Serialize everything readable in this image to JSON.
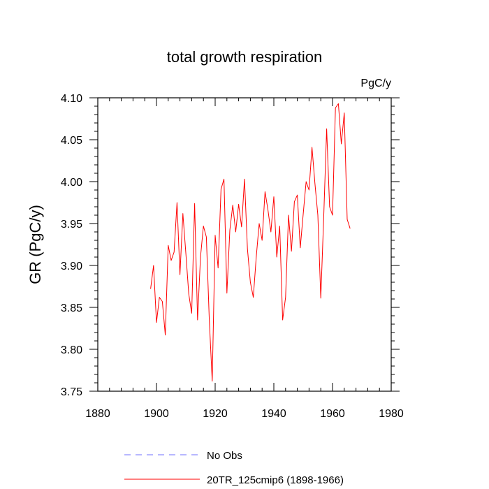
{
  "chart_data": {
    "type": "line",
    "title": "total growth respiration",
    "units_label": "PgC/y",
    "xlabel": "",
    "ylabel": "GR  (PgC/y)",
    "xlim": [
      1880,
      1980
    ],
    "ylim": [
      3.75,
      4.1
    ],
    "x_ticks": [
      1880,
      1900,
      1920,
      1940,
      1960,
      1980
    ],
    "x_tick_labels": [
      "1880",
      "1900",
      "1920",
      "1940",
      "1960",
      "1980"
    ],
    "y_ticks": [
      3.75,
      3.8,
      3.85,
      3.9,
      3.95,
      4.0,
      4.05,
      4.1
    ],
    "y_tick_labels": [
      "3.75",
      "3.80",
      "3.85",
      "3.90",
      "3.95",
      "4.00",
      "4.05",
      "4.10"
    ],
    "series": [
      {
        "name": "20TR_125cmip6 (1898-1966)",
        "color": "#ff0000",
        "style": "solid",
        "x": [
          1898,
          1899,
          1900,
          1901,
          1902,
          1903,
          1904,
          1905,
          1906,
          1907,
          1908,
          1909,
          1910,
          1911,
          1912,
          1913,
          1914,
          1915,
          1916,
          1917,
          1918,
          1919,
          1920,
          1921,
          1922,
          1923,
          1924,
          1925,
          1926,
          1927,
          1928,
          1929,
          1930,
          1931,
          1932,
          1933,
          1934,
          1935,
          1936,
          1937,
          1938,
          1939,
          1940,
          1941,
          1942,
          1943,
          1944,
          1945,
          1946,
          1947,
          1948,
          1949,
          1950,
          1951,
          1952,
          1953,
          1954,
          1955,
          1956,
          1957,
          1958,
          1959,
          1960,
          1961,
          1962,
          1963,
          1964,
          1965,
          1966
        ],
        "values": [
          3.872,
          3.9,
          3.832,
          3.862,
          3.857,
          3.817,
          3.924,
          3.906,
          3.916,
          3.975,
          3.889,
          3.962,
          3.915,
          3.866,
          3.843,
          3.974,
          3.835,
          3.91,
          3.947,
          3.934,
          3.835,
          3.762,
          3.936,
          3.897,
          3.991,
          4.003,
          3.867,
          3.942,
          3.972,
          3.94,
          3.973,
          3.946,
          4.003,
          3.92,
          3.88,
          3.862,
          3.91,
          3.95,
          3.93,
          3.988,
          3.966,
          3.94,
          3.982,
          3.91,
          3.947,
          3.835,
          3.862,
          3.96,
          3.917,
          3.976,
          3.984,
          3.921,
          3.961,
          4.0,
          3.99,
          4.041,
          3.998,
          3.96,
          3.861,
          3.958,
          4.063,
          3.97,
          3.96,
          4.088,
          4.093,
          4.045,
          4.082,
          3.955,
          3.944
        ]
      },
      {
        "name": "No Obs",
        "color": "#7070ff",
        "style": "dashed",
        "x": [],
        "values": []
      }
    ],
    "legend": "bottom-left"
  }
}
